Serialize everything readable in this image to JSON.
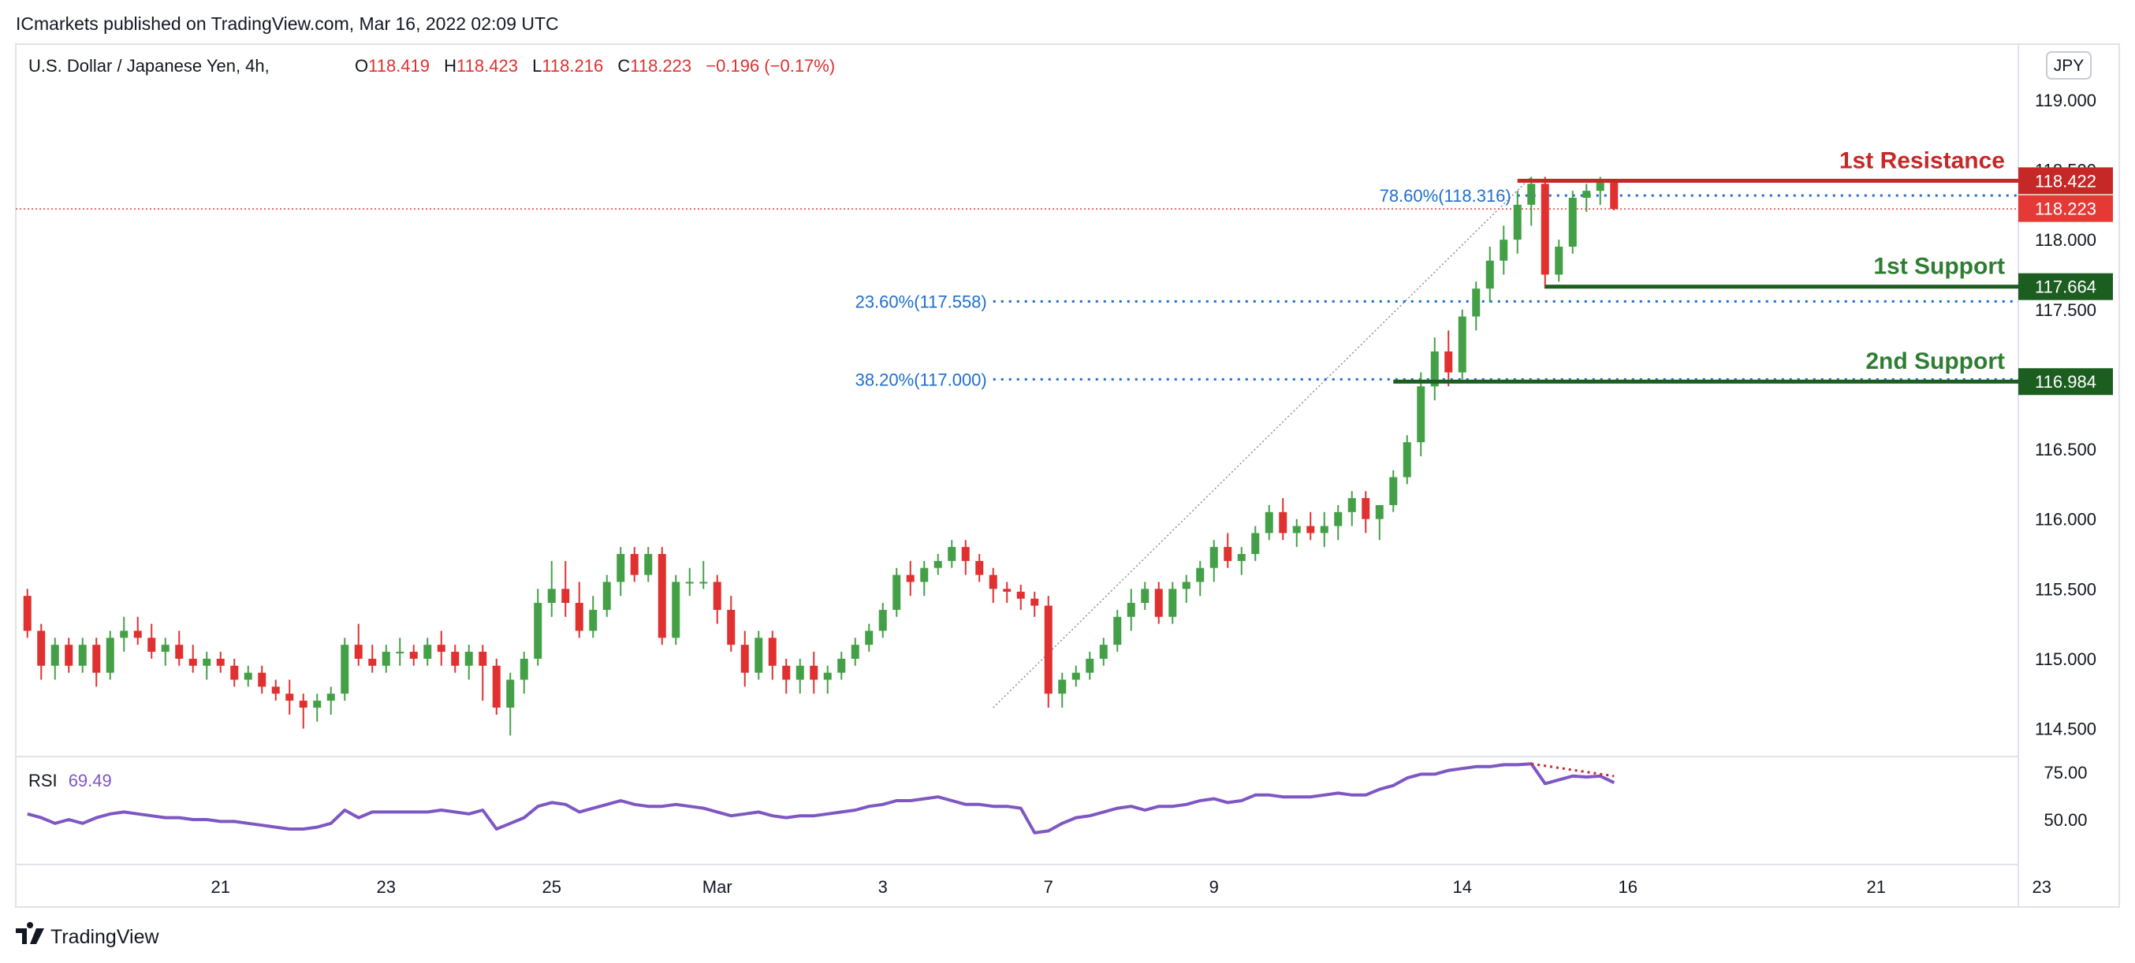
{
  "header": {
    "publisher_line": "ICmarkets published on TradingView.com, Mar 16, 2022 02:09 UTC"
  },
  "symbol": {
    "title": "U.S. Dollar / Japanese Yen, 4h,",
    "o_label": "O",
    "o": "118.419",
    "h_label": "H",
    "h": "118.423",
    "l_label": "L",
    "l": "118.216",
    "c_label": "C",
    "c": "118.223",
    "change": "−0.196 (−0.17%)",
    "currency_button": "JPY"
  },
  "colors": {
    "up": "#43a047",
    "down": "#e03030",
    "resistance": "#c62828",
    "support": "#1b5e20",
    "support_text": "#2e7d32",
    "fib": "#1e6fd0",
    "rsi": "#7e57c2",
    "last_price": "#e53935"
  },
  "price_axis": {
    "ticks": [
      {
        "value": 114.5,
        "label": "114.500"
      },
      {
        "value": 115.0,
        "label": "115.000"
      },
      {
        "value": 115.5,
        "label": "115.500"
      },
      {
        "value": 116.0,
        "label": "116.000"
      },
      {
        "value": 116.5,
        "label": "116.500"
      },
      {
        "value": 117.0,
        "label": "117.000"
      },
      {
        "value": 117.5,
        "label": "117.500"
      },
      {
        "value": 118.0,
        "label": "118.000"
      },
      {
        "value": 118.5,
        "label": "118.500"
      },
      {
        "value": 119.0,
        "label": "119.000"
      }
    ],
    "badges": [
      {
        "value": 118.422,
        "label": "118.422",
        "color": "#c62828"
      },
      {
        "value": 118.223,
        "label": "118.223",
        "color": "#e53935"
      },
      {
        "value": 117.664,
        "label": "117.664",
        "color": "#1b5e20"
      },
      {
        "value": 116.984,
        "label": "116.984",
        "color": "#1b5e20"
      }
    ]
  },
  "time_axis": {
    "labels": [
      {
        "index": 14,
        "label": "21"
      },
      {
        "index": 26,
        "label": "23"
      },
      {
        "index": 38,
        "label": "25"
      },
      {
        "index": 50,
        "label": "Mar"
      },
      {
        "index": 62,
        "label": "3"
      },
      {
        "index": 74,
        "label": "7"
      },
      {
        "index": 86,
        "label": "9"
      },
      {
        "index": 104,
        "label": "14"
      },
      {
        "index": 116,
        "label": "16"
      },
      {
        "index": 134,
        "label": "21"
      },
      {
        "index": 146,
        "label": "23"
      }
    ]
  },
  "levels": [
    {
      "name": "1st Resistance",
      "value": 118.422,
      "start_index": 108,
      "type": "resistance"
    },
    {
      "name": "1st Support",
      "value": 117.664,
      "start_index": 110,
      "type": "support"
    },
    {
      "name": "2nd Support",
      "value": 116.984,
      "start_index": 99,
      "type": "support"
    }
  ],
  "fib_levels": [
    {
      "label": "78.60%(118.316)",
      "value": 118.316,
      "start_index": 108
    },
    {
      "label": "23.60%(117.558)",
      "value": 117.558,
      "start_index": 70
    },
    {
      "label": "38.20%(117.000)",
      "value": 117.0,
      "start_index": 70
    }
  ],
  "fib_trend": {
    "from_index": 70,
    "from_value": 114.65,
    "to_index": 109,
    "to_value": 118.45
  },
  "rsi": {
    "label": "RSI",
    "value": "69.49",
    "ticks": [
      {
        "value": 75,
        "label": "75.00"
      },
      {
        "value": 50,
        "label": "50.00"
      }
    ],
    "divergence": {
      "from_index": 109,
      "from_value": 79.5,
      "to_index": 115,
      "to_value": 73.0
    }
  },
  "branding": {
    "logo_text": "TradingView"
  },
  "chart_data": {
    "type": "candlestick",
    "title": "U.S. Dollar / Japanese Yen, 4h,",
    "ylim": [
      114.3,
      119.4
    ],
    "candles": [
      [
        115.45,
        115.5,
        115.15,
        115.2
      ],
      [
        115.2,
        115.25,
        114.85,
        114.95
      ],
      [
        114.95,
        115.15,
        114.85,
        115.1
      ],
      [
        115.1,
        115.15,
        114.9,
        114.95
      ],
      [
        114.95,
        115.15,
        114.9,
        115.1
      ],
      [
        115.1,
        115.15,
        114.8,
        114.9
      ],
      [
        114.9,
        115.2,
        114.85,
        115.15
      ],
      [
        115.15,
        115.3,
        115.05,
        115.2
      ],
      [
        115.2,
        115.3,
        115.1,
        115.15
      ],
      [
        115.15,
        115.25,
        115.0,
        115.05
      ],
      [
        115.05,
        115.15,
        114.95,
        115.1
      ],
      [
        115.1,
        115.2,
        114.95,
        115.0
      ],
      [
        115.0,
        115.1,
        114.9,
        114.95
      ],
      [
        114.95,
        115.05,
        114.85,
        115.0
      ],
      [
        115.0,
        115.05,
        114.9,
        114.95
      ],
      [
        114.95,
        115.0,
        114.8,
        114.85
      ],
      [
        114.85,
        114.95,
        114.8,
        114.9
      ],
      [
        114.9,
        114.95,
        114.75,
        114.8
      ],
      [
        114.8,
        114.85,
        114.7,
        114.75
      ],
      [
        114.75,
        114.85,
        114.6,
        114.7
      ],
      [
        114.7,
        114.75,
        114.5,
        114.65
      ],
      [
        114.65,
        114.75,
        114.55,
        114.7
      ],
      [
        114.7,
        114.8,
        114.6,
        114.75
      ],
      [
        114.75,
        115.15,
        114.7,
        115.1
      ],
      [
        115.1,
        115.25,
        114.95,
        115.0
      ],
      [
        115.0,
        115.1,
        114.9,
        114.95
      ],
      [
        114.95,
        115.1,
        114.9,
        115.05
      ],
      [
        115.05,
        115.15,
        114.95,
        115.05
      ],
      [
        115.05,
        115.1,
        114.95,
        115.0
      ],
      [
        115.0,
        115.15,
        114.95,
        115.1
      ],
      [
        115.1,
        115.2,
        114.95,
        115.05
      ],
      [
        115.05,
        115.1,
        114.9,
        114.95
      ],
      [
        114.95,
        115.1,
        114.85,
        115.05
      ],
      [
        115.05,
        115.1,
        114.7,
        114.95
      ],
      [
        114.95,
        115.0,
        114.6,
        114.65
      ],
      [
        114.65,
        114.9,
        114.45,
        114.85
      ],
      [
        114.85,
        115.05,
        114.75,
        115.0
      ],
      [
        115.0,
        115.5,
        114.95,
        115.4
      ],
      [
        115.4,
        115.7,
        115.3,
        115.5
      ],
      [
        115.5,
        115.7,
        115.3,
        115.4
      ],
      [
        115.4,
        115.55,
        115.15,
        115.2
      ],
      [
        115.2,
        115.45,
        115.15,
        115.35
      ],
      [
        115.35,
        115.6,
        115.3,
        115.55
      ],
      [
        115.55,
        115.8,
        115.45,
        115.75
      ],
      [
        115.75,
        115.8,
        115.55,
        115.6
      ],
      [
        115.6,
        115.8,
        115.55,
        115.75
      ],
      [
        115.75,
        115.8,
        115.1,
        115.15
      ],
      [
        115.15,
        115.6,
        115.1,
        115.55
      ],
      [
        115.55,
        115.65,
        115.45,
        115.55
      ],
      [
        115.55,
        115.7,
        115.5,
        115.55
      ],
      [
        115.55,
        115.6,
        115.25,
        115.35
      ],
      [
        115.35,
        115.45,
        115.05,
        115.1
      ],
      [
        115.1,
        115.2,
        114.8,
        114.9
      ],
      [
        114.9,
        115.2,
        114.85,
        115.15
      ],
      [
        115.15,
        115.2,
        114.85,
        114.95
      ],
      [
        114.95,
        115.0,
        114.75,
        114.85
      ],
      [
        114.85,
        115.0,
        114.75,
        114.95
      ],
      [
        114.95,
        115.05,
        114.75,
        114.85
      ],
      [
        114.85,
        114.95,
        114.75,
        114.9
      ],
      [
        114.9,
        115.05,
        114.85,
        115.0
      ],
      [
        115.0,
        115.15,
        114.95,
        115.1
      ],
      [
        115.1,
        115.25,
        115.05,
        115.2
      ],
      [
        115.2,
        115.4,
        115.15,
        115.35
      ],
      [
        115.35,
        115.65,
        115.3,
        115.6
      ],
      [
        115.6,
        115.7,
        115.45,
        115.55
      ],
      [
        115.55,
        115.7,
        115.45,
        115.65
      ],
      [
        115.65,
        115.75,
        115.6,
        115.7
      ],
      [
        115.7,
        115.85,
        115.65,
        115.8
      ],
      [
        115.8,
        115.85,
        115.6,
        115.7
      ],
      [
        115.7,
        115.75,
        115.55,
        115.6
      ],
      [
        115.6,
        115.65,
        115.4,
        115.5
      ],
      [
        115.5,
        115.55,
        115.4,
        115.48
      ],
      [
        115.48,
        115.53,
        115.35,
        115.43
      ],
      [
        115.43,
        115.48,
        115.3,
        115.38
      ],
      [
        115.38,
        115.45,
        114.65,
        114.75
      ],
      [
        114.75,
        114.9,
        114.65,
        114.85
      ],
      [
        114.85,
        114.95,
        114.8,
        114.9
      ],
      [
        114.9,
        115.05,
        114.85,
        115.0
      ],
      [
        115.0,
        115.15,
        114.95,
        115.1
      ],
      [
        115.1,
        115.35,
        115.05,
        115.3
      ],
      [
        115.3,
        115.5,
        115.2,
        115.4
      ],
      [
        115.4,
        115.55,
        115.35,
        115.5
      ],
      [
        115.5,
        115.55,
        115.25,
        115.3
      ],
      [
        115.3,
        115.55,
        115.25,
        115.5
      ],
      [
        115.5,
        115.6,
        115.4,
        115.55
      ],
      [
        115.55,
        115.7,
        115.45,
        115.65
      ],
      [
        115.65,
        115.85,
        115.55,
        115.8
      ],
      [
        115.8,
        115.9,
        115.65,
        115.7
      ],
      [
        115.7,
        115.8,
        115.6,
        115.75
      ],
      [
        115.75,
        115.95,
        115.7,
        115.9
      ],
      [
        115.9,
        116.1,
        115.85,
        116.05
      ],
      [
        116.05,
        116.15,
        115.85,
        115.9
      ],
      [
        115.9,
        116.0,
        115.8,
        115.95
      ],
      [
        115.95,
        116.05,
        115.85,
        115.9
      ],
      [
        115.9,
        116.05,
        115.8,
        115.95
      ],
      [
        115.95,
        116.1,
        115.85,
        116.05
      ],
      [
        116.05,
        116.2,
        115.95,
        116.15
      ],
      [
        116.15,
        116.2,
        115.9,
        116.0
      ],
      [
        116.0,
        116.1,
        115.85,
        116.1
      ],
      [
        116.1,
        116.35,
        116.05,
        116.3
      ],
      [
        116.3,
        116.6,
        116.25,
        116.55
      ],
      [
        116.55,
        117.05,
        116.45,
        116.95
      ],
      [
        116.95,
        117.3,
        116.85,
        117.2
      ],
      [
        117.2,
        117.35,
        116.95,
        117.05
      ],
      [
        117.05,
        117.5,
        117.0,
        117.45
      ],
      [
        117.45,
        117.7,
        117.35,
        117.65
      ],
      [
        117.65,
        117.95,
        117.55,
        117.85
      ],
      [
        117.85,
        118.1,
        117.75,
        118.0
      ],
      [
        118.0,
        118.35,
        117.9,
        118.25
      ],
      [
        118.25,
        118.45,
        118.1,
        118.4
      ],
      [
        118.4,
        118.45,
        117.65,
        117.75
      ],
      [
        117.75,
        118.0,
        117.7,
        117.95
      ],
      [
        117.95,
        118.35,
        117.9,
        118.3
      ],
      [
        118.3,
        118.4,
        118.2,
        118.35
      ],
      [
        118.35,
        118.45,
        118.25,
        118.42
      ],
      [
        118.42,
        118.43,
        118.21,
        118.22
      ]
    ],
    "rsi_values": [
      53,
      51,
      48,
      50,
      48,
      51,
      53,
      54,
      53,
      52,
      51,
      51,
      50,
      50,
      49,
      49,
      48,
      47,
      46,
      45,
      45,
      46,
      48,
      55,
      51,
      54,
      54,
      54,
      54,
      54,
      55,
      54,
      53,
      55,
      45,
      48,
      51,
      57,
      59,
      58,
      54,
      56,
      58,
      60,
      58,
      57,
      57,
      58,
      57,
      56,
      54,
      52,
      53,
      54,
      52,
      51,
      52,
      52,
      53,
      54,
      55,
      57,
      58,
      60,
      60,
      61,
      62,
      60,
      58,
      58,
      57,
      57,
      56,
      43,
      44,
      48,
      51,
      52,
      54,
      56,
      57,
      55,
      57,
      57,
      58,
      60,
      61,
      59,
      60,
      63,
      63,
      62,
      62,
      62,
      63,
      64,
      63,
      63,
      66,
      68,
      72,
      74,
      74,
      76,
      77,
      78,
      78,
      79,
      79,
      79.5,
      69,
      71,
      73,
      72.5,
      73,
      69.49
    ]
  }
}
